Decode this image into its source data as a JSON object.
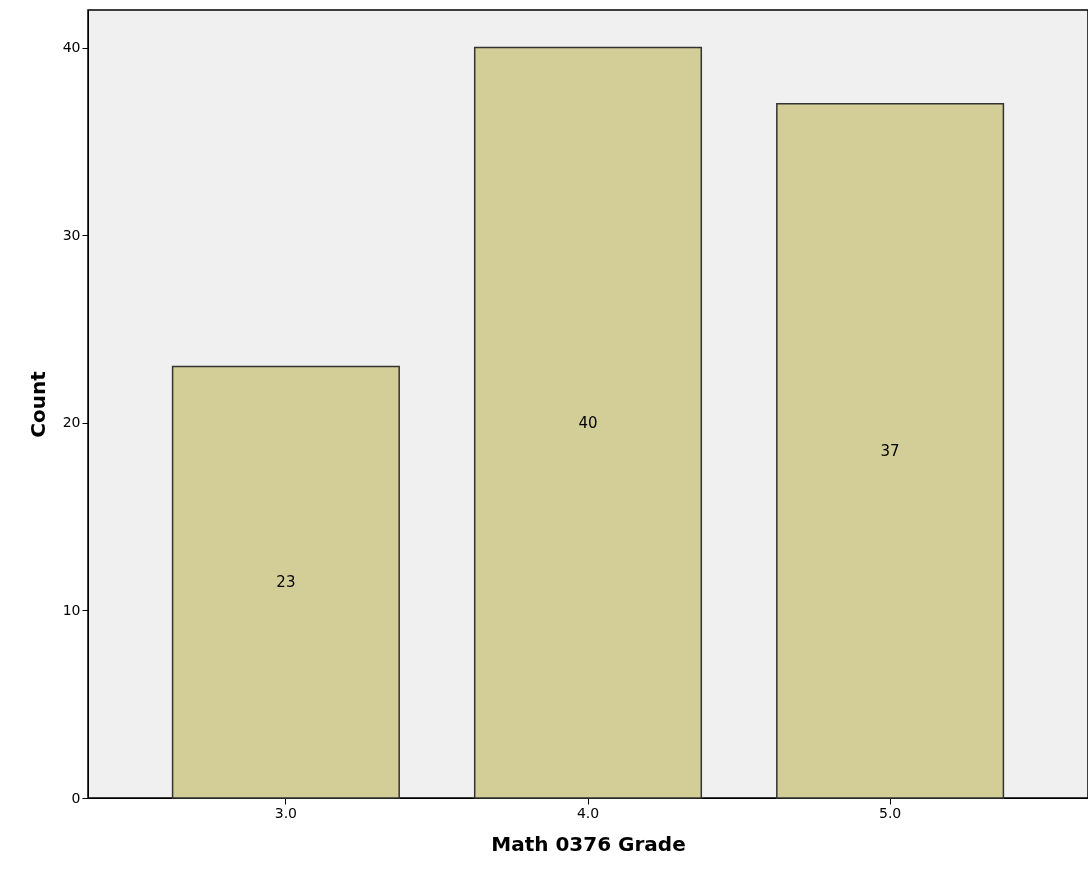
{
  "chart_data": {
    "type": "bar",
    "xlabel": "Math 0376 Grade",
    "ylabel": "Count",
    "categories": [
      "3.0",
      "4.0",
      "5.0"
    ],
    "values": [
      23,
      40,
      37
    ],
    "color": "#d3ce97",
    "ylim": [
      0,
      42
    ],
    "yticks": [
      0,
      10,
      20,
      30,
      40
    ],
    "grid": false,
    "data_labels": true
  }
}
